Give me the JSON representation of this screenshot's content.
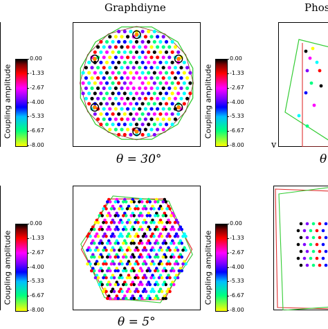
{
  "titles": {
    "col1": "Graphdiyne",
    "col2": "Phos"
  },
  "captions": {
    "top": "θ = 30°",
    "bottom": "θ = 5°",
    "right_top": "θ",
    "right_bottom": ""
  },
  "colorbar": {
    "label": "Coupling amplitude",
    "ticks": [
      "0.00",
      "-1.33",
      "-2.67",
      "-4.00",
      "-5.33",
      "-6.67",
      "-8.00"
    ]
  },
  "stray_letter": "v",
  "colors": {
    "palette": [
      "#000000",
      "#ff0000",
      "#ff00ff",
      "#8000ff",
      "#0000ff",
      "#00ffff",
      "#00ff80",
      "#ffff00"
    ],
    "boundary_green": "#33cc33",
    "boundary_red": "#e03030"
  },
  "panels": {
    "top_left": "12-gon moiré cell, θ = 30°",
    "bottom_left": "hexagonal moiré cell, θ = 5°"
  }
}
